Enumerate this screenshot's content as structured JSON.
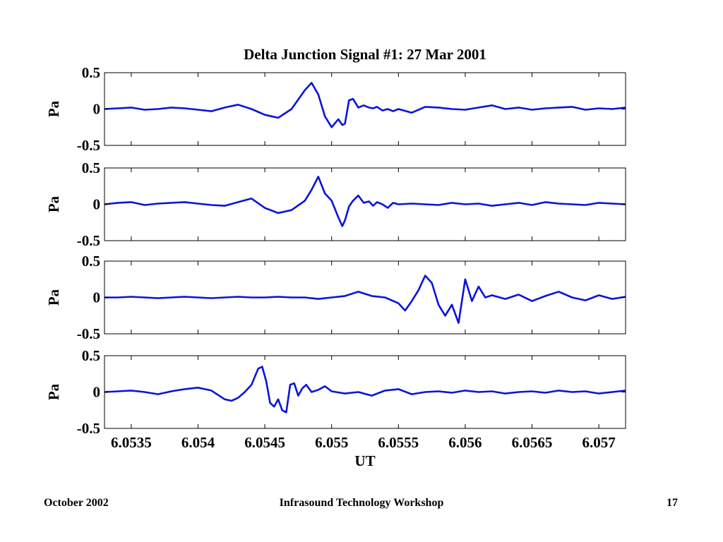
{
  "slide": {
    "footer_left": "October 2002",
    "footer_center": "Infrasound Technology Workshop",
    "footer_right": "17"
  },
  "colors": {
    "signal": "#0a14d8",
    "axis": "#000000",
    "background": "#ffffff"
  },
  "chart_data": {
    "type": "line",
    "title": "Delta Junction Signal #1: 27 Mar 2001",
    "xlabel": "UT",
    "ylabel": "Pa",
    "xlim": [
      6.0533,
      6.0572
    ],
    "ylim": [
      -0.5,
      0.5
    ],
    "xticks": [
      6.0535,
      6.054,
      6.0545,
      6.055,
      6.0555,
      6.056,
      6.0565,
      6.057
    ],
    "xtick_labels": [
      "6.0535",
      "6.054",
      "6.0545",
      "6.055",
      "6.0555",
      "6.056",
      "6.0565",
      "6.057"
    ],
    "yticks": [
      -0.5,
      0,
      0.5
    ],
    "ytick_labels": [
      "-0.5",
      "0",
      "0.5"
    ],
    "grid": false,
    "panels": [
      {
        "x": [
          6.0533,
          6.0534,
          6.0535,
          6.0536,
          6.0537,
          6.0538,
          6.0539,
          6.054,
          6.0541,
          6.0542,
          6.0543,
          6.0544,
          6.0545,
          6.0546,
          6.0547,
          6.0548,
          6.05485,
          6.0549,
          6.05495,
          6.055,
          6.05505,
          6.05508,
          6.0551,
          6.05513,
          6.05516,
          6.0552,
          6.05524,
          6.05528,
          6.05531,
          6.05534,
          6.05538,
          6.05542,
          6.05546,
          6.0555,
          6.0556,
          6.0557,
          6.0558,
          6.0559,
          6.056,
          6.0561,
          6.0562,
          6.0563,
          6.0564,
          6.0565,
          6.0566,
          6.0567,
          6.0568,
          6.0569,
          6.057,
          6.0571,
          6.0572
        ],
        "y": [
          0.0,
          0.01,
          0.02,
          -0.01,
          0.0,
          0.02,
          0.01,
          -0.01,
          -0.03,
          0.02,
          0.06,
          0.0,
          -0.08,
          -0.12,
          0.0,
          0.26,
          0.36,
          0.2,
          -0.1,
          -0.25,
          -0.14,
          -0.22,
          -0.2,
          0.12,
          0.14,
          0.02,
          0.05,
          0.02,
          0.01,
          0.03,
          -0.02,
          0.0,
          -0.03,
          0.0,
          -0.05,
          0.03,
          0.02,
          0.0,
          -0.01,
          0.02,
          0.05,
          0.0,
          0.02,
          -0.01,
          0.01,
          0.02,
          0.03,
          -0.01,
          0.01,
          0.0,
          0.02
        ]
      },
      {
        "x": [
          6.0533,
          6.0534,
          6.0535,
          6.0536,
          6.0537,
          6.0538,
          6.0539,
          6.054,
          6.0541,
          6.0542,
          6.0543,
          6.0544,
          6.0545,
          6.0546,
          6.0547,
          6.0548,
          6.05485,
          6.0549,
          6.05495,
          6.055,
          6.05505,
          6.05508,
          6.0551,
          6.05513,
          6.05516,
          6.0552,
          6.05524,
          6.05528,
          6.05531,
          6.05534,
          6.05538,
          6.05542,
          6.05546,
          6.0555,
          6.0556,
          6.0557,
          6.0558,
          6.0559,
          6.056,
          6.0561,
          6.0562,
          6.0563,
          6.0564,
          6.0565,
          6.0566,
          6.0567,
          6.0568,
          6.0569,
          6.057,
          6.0571,
          6.0572
        ],
        "y": [
          0.0,
          0.02,
          0.03,
          -0.01,
          0.01,
          0.02,
          0.03,
          0.01,
          -0.01,
          -0.02,
          0.03,
          0.08,
          -0.05,
          -0.12,
          -0.08,
          0.05,
          0.2,
          0.38,
          0.15,
          0.05,
          -0.18,
          -0.3,
          -0.22,
          -0.03,
          0.05,
          0.12,
          0.02,
          0.04,
          -0.02,
          0.03,
          0.0,
          -0.05,
          0.02,
          0.0,
          0.01,
          0.0,
          -0.01,
          0.02,
          0.0,
          0.01,
          -0.02,
          0.0,
          0.02,
          -0.01,
          0.03,
          0.01,
          0.0,
          -0.01,
          0.02,
          0.01,
          0.0
        ]
      },
      {
        "x": [
          6.0533,
          6.0534,
          6.0535,
          6.0536,
          6.0537,
          6.0538,
          6.0539,
          6.054,
          6.0541,
          6.0542,
          6.0543,
          6.0544,
          6.0545,
          6.0546,
          6.0547,
          6.0548,
          6.0549,
          6.055,
          6.0551,
          6.0552,
          6.0553,
          6.0554,
          6.0555,
          6.05555,
          6.0556,
          6.05565,
          6.0557,
          6.05575,
          6.0558,
          6.05585,
          6.0559,
          6.05595,
          6.056,
          6.05605,
          6.0561,
          6.05615,
          6.0562,
          6.0563,
          6.0564,
          6.0565,
          6.0566,
          6.0567,
          6.0568,
          6.0569,
          6.057,
          6.0571,
          6.0572
        ],
        "y": [
          0.0,
          0.0,
          0.01,
          0.0,
          -0.01,
          0.0,
          0.01,
          0.0,
          -0.01,
          0.0,
          0.01,
          0.0,
          0.0,
          0.01,
          0.0,
          0.0,
          -0.02,
          0.0,
          0.02,
          0.08,
          0.02,
          0.0,
          -0.08,
          -0.18,
          -0.05,
          0.1,
          0.3,
          0.2,
          -0.1,
          -0.25,
          -0.1,
          -0.35,
          0.25,
          -0.05,
          0.15,
          0.0,
          0.03,
          -0.02,
          0.04,
          -0.05,
          0.02,
          0.08,
          0.0,
          -0.04,
          0.03,
          -0.02,
          0.01
        ]
      },
      {
        "x": [
          6.0533,
          6.0534,
          6.0535,
          6.0536,
          6.0537,
          6.0538,
          6.0539,
          6.054,
          6.0541,
          6.0542,
          6.05425,
          6.0543,
          6.05435,
          6.0544,
          6.05445,
          6.05448,
          6.05451,
          6.05454,
          6.05457,
          6.0546,
          6.05463,
          6.05466,
          6.05469,
          6.05472,
          6.05475,
          6.05478,
          6.05481,
          6.05485,
          6.0549,
          6.05495,
          6.055,
          6.0551,
          6.0552,
          6.0553,
          6.0554,
          6.0555,
          6.0556,
          6.0557,
          6.0558,
          6.0559,
          6.056,
          6.0561,
          6.0562,
          6.0563,
          6.0564,
          6.0565,
          6.0566,
          6.0567,
          6.0568,
          6.0569,
          6.057,
          6.0571,
          6.0572
        ],
        "y": [
          0.0,
          0.01,
          0.02,
          0.0,
          -0.03,
          0.01,
          0.04,
          0.06,
          0.02,
          -0.1,
          -0.12,
          -0.08,
          0.0,
          0.1,
          0.32,
          0.35,
          0.15,
          -0.15,
          -0.2,
          -0.1,
          -0.25,
          -0.28,
          0.1,
          0.12,
          -0.05,
          0.05,
          0.1,
          0.0,
          0.03,
          0.08,
          0.01,
          -0.02,
          0.0,
          -0.05,
          0.02,
          0.04,
          -0.03,
          0.0,
          0.01,
          -0.01,
          0.02,
          0.0,
          0.01,
          -0.02,
          0.0,
          0.01,
          -0.01,
          0.02,
          0.0,
          0.01,
          -0.02,
          0.0,
          0.02
        ]
      }
    ]
  }
}
